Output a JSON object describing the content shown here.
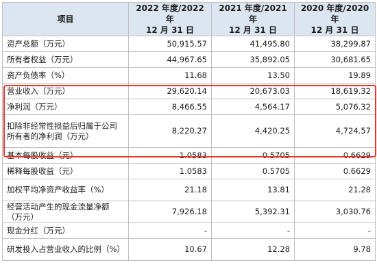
{
  "header": {
    "item": "项目",
    "col1": [
      "2022 年度/2022 年",
      "12 月 31 日"
    ],
    "col2": [
      "2021 年度/2021 年",
      "12 月 31 日"
    ],
    "col3": [
      "2020 年度/2020 年",
      "12 月 31 日"
    ]
  },
  "rows": [
    {
      "label": "资产总额（万元）",
      "v2022": "50,915.57",
      "v2021": "41,495.80",
      "v2020": "38,299.87"
    },
    {
      "label": "所有者权益（万元）",
      "v2022": "44,967.65",
      "v2021": "35,892.05",
      "v2020": "30,681.65"
    },
    {
      "label": "资产负债率（%）",
      "v2022": "11.68",
      "v2021": "13.50",
      "v2020": "19.89"
    },
    {
      "label": "营业收入（万元）",
      "v2022": "29,620.14",
      "v2021": "20,673.03",
      "v2020": "18,619.32"
    },
    {
      "label": "净利润（万元）",
      "v2022": "8,466.55",
      "v2021": "4,564.17",
      "v2020": "5,076.32"
    },
    {
      "label": "扣除非经常性损益后归属于公司所有者的净利润（万元）",
      "v2022": "8,220.27",
      "v2021": "4,420.25",
      "v2020": "4,724.57"
    },
    {
      "label": "基本每股收益（元）",
      "v2022": "1.0583",
      "v2021": "0.5705",
      "v2020": "0.6629"
    },
    {
      "label": "稀释每股收益（元）",
      "v2022": "1.0583",
      "v2021": "0.5705",
      "v2020": "0.6629"
    },
    {
      "label": "加权平均净资产收益率（%）",
      "v2022": "21.18",
      "v2021": "13.81",
      "v2020": "21.28"
    },
    {
      "label": "经营活动产生的现金流量净额（万元）",
      "v2022": "7,926.18",
      "v2021": "5,392.31",
      "v2020": "3,030.76"
    },
    {
      "label": "现金分红（万元）",
      "v2022": "-",
      "v2021": "-",
      "v2020": "-"
    },
    {
      "label": "研发投入占营业收入的比例（%）",
      "v2022": "10.67",
      "v2021": "12.28",
      "v2020": "9.78"
    }
  ],
  "colors": {
    "header_bg": "#dce6f1",
    "highlight_border": "#e8342a",
    "grid": "#bfbfbf"
  }
}
